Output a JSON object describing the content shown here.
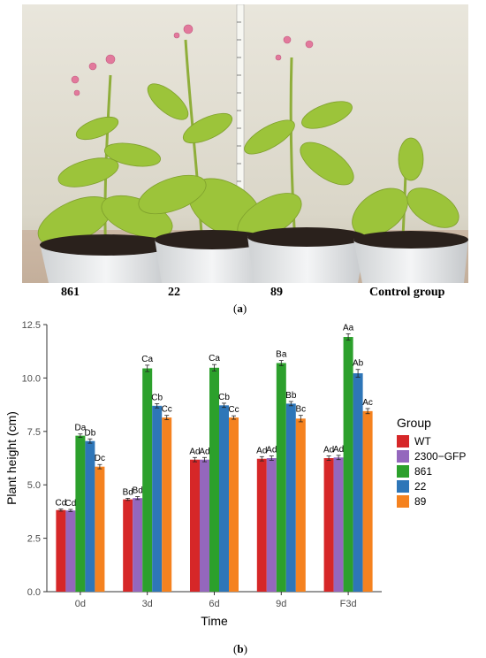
{
  "panel_a": {
    "plant_labels": [
      "861",
      "22",
      "89",
      "Control group"
    ],
    "caption_letter": "a"
  },
  "panel_b": {
    "caption_letter": "b"
  },
  "colors": {
    "WT": "#2e76b8",
    "2300-GFP": "#f5821f",
    "861": "#2ca02c",
    "22": "#d62728",
    "89": "#9467bd"
  },
  "chart_data": {
    "type": "bar",
    "xlabel": "Time",
    "ylabel": "Plant height (cm)",
    "categories": [
      "0d",
      "3d",
      "6d",
      "9d",
      "F3d"
    ],
    "ylim": [
      0,
      12.5
    ],
    "yticks": [
      "0.0",
      "2.5",
      "5.0",
      "7.5",
      "10.0",
      "12.5"
    ],
    "legend_title": "Group",
    "legend_position": "right",
    "grid": false,
    "series": [
      {
        "name": "WT",
        "values": [
          3.82,
          4.32,
          6.18,
          6.22,
          6.25
        ],
        "errors": [
          0.05,
          0.05,
          0.1,
          0.1,
          0.1
        ],
        "labels": [
          "Cd",
          "Bd",
          "Ad",
          "Ad",
          "Ad"
        ]
      },
      {
        "name": "2300−GFP",
        "values": [
          3.8,
          4.38,
          6.18,
          6.25,
          6.28
        ],
        "errors": [
          0.05,
          0.07,
          0.1,
          0.1,
          0.1
        ],
        "labels": [
          "Cd",
          "Bd",
          "Ad",
          "Ad",
          "Ad"
        ]
      },
      {
        "name": "861",
        "values": [
          7.3,
          10.45,
          10.48,
          10.7,
          11.92
        ],
        "errors": [
          0.08,
          0.15,
          0.15,
          0.12,
          0.15
        ],
        "labels": [
          "Da",
          "Ca",
          "Ca",
          "Ba",
          "Aa"
        ]
      },
      {
        "name": "22",
        "values": [
          7.05,
          8.7,
          8.72,
          8.8,
          10.22
        ],
        "errors": [
          0.1,
          0.1,
          0.1,
          0.1,
          0.18
        ],
        "labels": [
          "Db",
          "Cb",
          "Cb",
          "Bb",
          "Ab"
        ]
      },
      {
        "name": "89",
        "values": [
          5.85,
          8.15,
          8.15,
          8.1,
          8.45
        ],
        "errors": [
          0.1,
          0.1,
          0.08,
          0.15,
          0.12
        ],
        "labels": [
          "Dc",
          "Cc",
          "Cc",
          "Bc",
          "Ac"
        ]
      }
    ]
  }
}
